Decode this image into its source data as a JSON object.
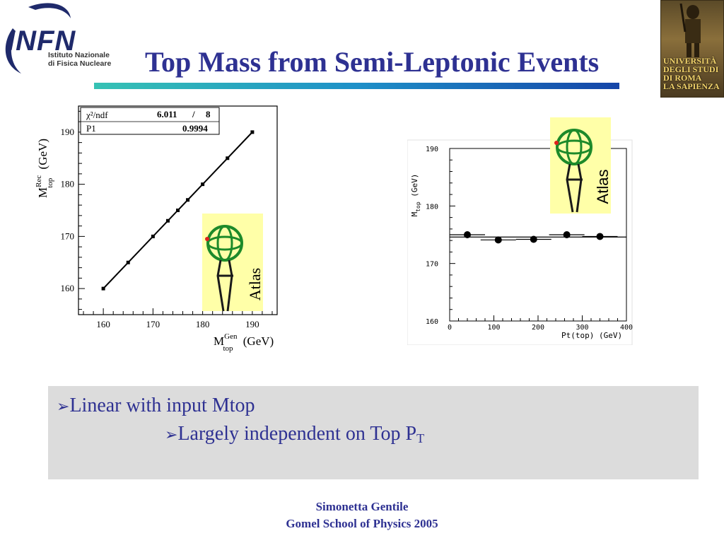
{
  "header": {
    "title": "Top Mass from Semi-Leptonic Events",
    "infn_word": "INFN",
    "infn_line1": "Istituto Nazionale",
    "infn_line2": "di Fisica Nucleare",
    "university": [
      "UNIVERSITÀ",
      "DEGLI STUDI",
      "DI ROMA",
      "LA SAPIENZA"
    ]
  },
  "chart_data": [
    {
      "type": "scatter",
      "xlabel": "M_top^Gen (GeV)",
      "ylabel": "M_top^Rec (GeV)",
      "xlim": [
        155,
        195
      ],
      "ylim": [
        155,
        195
      ],
      "xticks": [
        160,
        170,
        180,
        190
      ],
      "yticks": [
        160,
        170,
        180,
        190
      ],
      "points": [
        {
          "x": 160,
          "y": 160
        },
        {
          "x": 165,
          "y": 165
        },
        {
          "x": 170,
          "y": 170
        },
        {
          "x": 173,
          "y": 173
        },
        {
          "x": 175,
          "y": 175
        },
        {
          "x": 177,
          "y": 177
        },
        {
          "x": 180,
          "y": 180
        },
        {
          "x": 185,
          "y": 185
        },
        {
          "x": 190,
          "y": 190
        }
      ],
      "fit": {
        "x": [
          160,
          190
        ],
        "y": [
          160,
          190
        ]
      },
      "stats": {
        "chi2_label": "χ²/ndf",
        "chi2_value": "6.011",
        "sep": "/",
        "ndf": "8",
        "p1_label": "P1",
        "p1_value": "0.9994"
      },
      "overlay_label": "Atlas"
    },
    {
      "type": "scatter",
      "xlabel": "Pt(top) (GeV)",
      "ylabel": "M_top (GeV)",
      "xlim": [
        0,
        400
      ],
      "ylim": [
        160,
        190
      ],
      "xticks": [
        0,
        100,
        200,
        300,
        400
      ],
      "yticks": [
        160,
        170,
        180,
        190
      ],
      "points": [
        {
          "x": 40,
          "y": 175.0,
          "xerr": 40
        },
        {
          "x": 110,
          "y": 174.1,
          "xerr": 40
        },
        {
          "x": 190,
          "y": 174.2,
          "xerr": 40
        },
        {
          "x": 265,
          "y": 175.0,
          "xerr": 40
        },
        {
          "x": 340,
          "y": 174.7,
          "xerr": 40
        }
      ],
      "hline": 174.6,
      "overlay_label": "Atlas"
    }
  ],
  "bullets": {
    "line1": "Linear with input Mtop",
    "line2": "Largely independent on Top P",
    "line2_sub": "T"
  },
  "footer": {
    "author": "Simonetta Gentile",
    "event": "Gomel School of Physics 2005"
  },
  "colors": {
    "title": "#2e3192",
    "bullet_box": "#dcdcdc",
    "atlas_bg": "#ffffa8"
  }
}
